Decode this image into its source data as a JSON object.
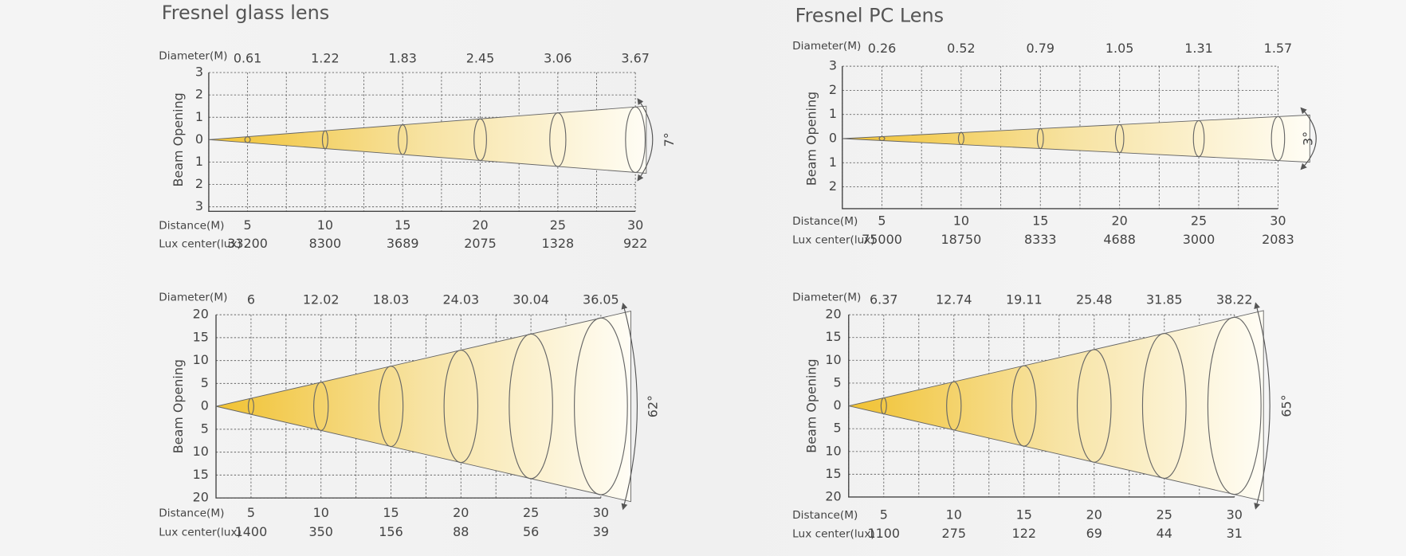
{
  "panels": [
    {
      "title": "Fresnel glass lens",
      "diameter_label": "Diameter(M)",
      "diameters": [
        "0.61",
        "1.22",
        "1.83",
        "2.45",
        "3.06",
        "3.67"
      ],
      "beam_label": "Beam Opening",
      "beam_ticks": [
        "3",
        "2",
        "1",
        "0",
        "1",
        "2",
        "3"
      ],
      "distance_label": "Distance(M)",
      "distances": [
        "5",
        "10",
        "15",
        "20",
        "25",
        "30"
      ],
      "lux_label": "Lux center(lux)",
      "lux": [
        "33200",
        "8300",
        "3689",
        "2075",
        "1328",
        "922"
      ],
      "angle": "7°"
    },
    {
      "title": "Fresnel PC Lens",
      "diameter_label": "Diameter(M)",
      "diameters": [
        "0.26",
        "0.52",
        "0.79",
        "1.05",
        "1.31",
        "1.57"
      ],
      "beam_label": "Beam Opening",
      "beam_ticks": [
        "3",
        "2",
        "1",
        "0",
        "1",
        "2"
      ],
      "distance_label": "Distance(M)",
      "distances": [
        "5",
        "10",
        "15",
        "20",
        "25",
        "30"
      ],
      "lux_label": "Lux center(lux)",
      "lux": [
        "75000",
        "18750",
        "8333",
        "4688",
        "3000",
        "2083"
      ],
      "angle": "3°"
    },
    {
      "diameter_label": "Diameter(M)",
      "diameters": [
        "6",
        "12.02",
        "18.03",
        "24.03",
        "30.04",
        "36.05"
      ],
      "beam_label": "Beam Opening",
      "beam_ticks": [
        "20",
        "15",
        "10",
        "5",
        "0",
        "5",
        "10",
        "15",
        "20"
      ],
      "distance_label": "Distance(M)",
      "distances": [
        "5",
        "10",
        "15",
        "20",
        "25",
        "30"
      ],
      "lux_label": "Lux center(lux)",
      "lux": [
        "1400",
        "350",
        "156",
        "88",
        "56",
        "39"
      ],
      "angle": "62°"
    },
    {
      "diameter_label": "Diameter(M)",
      "diameters": [
        "6.37",
        "12.74",
        "19.11",
        "25.48",
        "31.85",
        "38.22"
      ],
      "beam_label": "Beam Opening",
      "beam_ticks": [
        "20",
        "15",
        "10",
        "5",
        "0",
        "5",
        "10",
        "15",
        "20"
      ],
      "distance_label": "Distance(M)",
      "distances": [
        "5",
        "10",
        "15",
        "20",
        "25",
        "30"
      ],
      "lux_label": "Lux center(lux)",
      "lux": [
        "1100",
        "275",
        "122",
        "69",
        "44",
        "31"
      ],
      "angle": "65°"
    }
  ]
}
